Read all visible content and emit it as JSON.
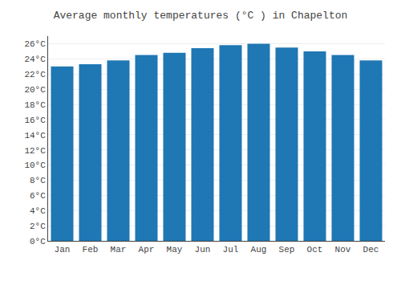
{
  "chart_data": {
    "type": "bar",
    "title": "Average monthly temperatures (°C ) in Chapelton",
    "categories": [
      "Jan",
      "Feb",
      "Mar",
      "Apr",
      "May",
      "Jun",
      "Jul",
      "Aug",
      "Sep",
      "Oct",
      "Nov",
      "Dec"
    ],
    "values": [
      23.0,
      23.3,
      23.8,
      24.5,
      24.8,
      25.4,
      25.8,
      26.0,
      25.5,
      25.0,
      24.5,
      23.8
    ],
    "ylim": [
      0,
      27
    ],
    "yticks": [
      {
        "value": 0,
        "label": "0°C"
      },
      {
        "value": 2,
        "label": "2°C"
      },
      {
        "value": 4,
        "label": "4°C"
      },
      {
        "value": 6,
        "label": "6°C"
      },
      {
        "value": 8,
        "label": "8°C"
      },
      {
        "value": 10,
        "label": "10°C"
      },
      {
        "value": 12,
        "label": "12°C"
      },
      {
        "value": 14,
        "label": "14°C"
      },
      {
        "value": 16,
        "label": "16°C"
      },
      {
        "value": 18,
        "label": "18°C"
      },
      {
        "value": 20,
        "label": "20°C"
      },
      {
        "value": 22,
        "label": "22°C"
      },
      {
        "value": 24,
        "label": "24°C"
      },
      {
        "value": 26,
        "label": "26°C"
      }
    ],
    "grid": true
  }
}
